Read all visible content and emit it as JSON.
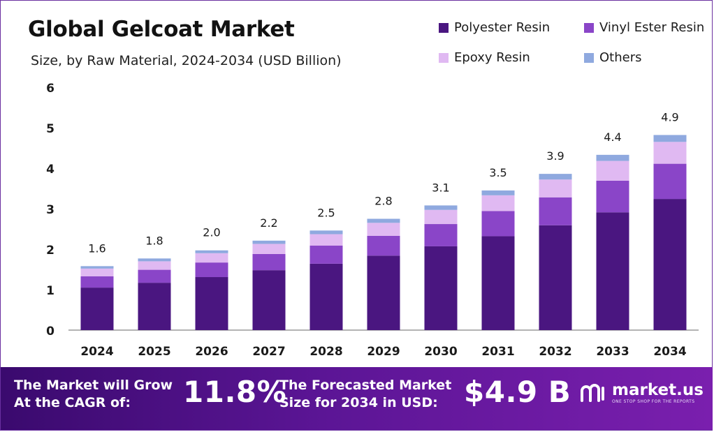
{
  "title": "Global Gelcoat Market",
  "subtitle": "Size, by Raw Material, 2024-2034 (USD Billion)",
  "colors": {
    "polyester": "#4a1680",
    "vinyl": "#8a45c8",
    "epoxy": "#e0b9f2",
    "others": "#8fa9df",
    "banner": "#5b1595"
  },
  "chart_data": {
    "type": "bar",
    "stacked": true,
    "categories": [
      "2024",
      "2025",
      "2026",
      "2027",
      "2028",
      "2029",
      "2030",
      "2031",
      "2032",
      "2033",
      "2034"
    ],
    "series": [
      {
        "name": "Polyester Resin",
        "values": [
          1.05,
          1.17,
          1.31,
          1.48,
          1.64,
          1.84,
          2.07,
          2.32,
          2.59,
          2.91,
          3.24
        ]
      },
      {
        "name": "Vinyl Ester Resin",
        "values": [
          0.28,
          0.32,
          0.36,
          0.4,
          0.45,
          0.49,
          0.55,
          0.62,
          0.69,
          0.78,
          0.87
        ]
      },
      {
        "name": "Epoxy Resin",
        "values": [
          0.19,
          0.21,
          0.23,
          0.25,
          0.28,
          0.32,
          0.35,
          0.39,
          0.44,
          0.49,
          0.54
        ]
      },
      {
        "name": "Others",
        "values": [
          0.06,
          0.07,
          0.07,
          0.08,
          0.09,
          0.1,
          0.11,
          0.12,
          0.14,
          0.15,
          0.17
        ]
      }
    ],
    "totals": [
      "1.6",
      "1.8",
      "2.0",
      "2.2",
      "2.5",
      "2.8",
      "3.1",
      "3.5",
      "3.9",
      "4.4",
      "4.9"
    ],
    "ylim": [
      0,
      6
    ],
    "yticks": [
      "0",
      "1",
      "2",
      "3",
      "4",
      "5",
      "6"
    ],
    "grid": false,
    "legend_position": "top-right"
  },
  "banner": {
    "cagr_text_line1": "The Market will Grow",
    "cagr_text_line2": "At the CAGR of:",
    "cagr_value": "11.8%",
    "forecast_text_line1": "The Forecasted Market",
    "forecast_text_line2": "Size for 2034 in USD:",
    "forecast_value": "$4.9 B",
    "brand": "market.us",
    "brand_tagline": "ONE STOP SHOP FOR THE REPORTS"
  }
}
